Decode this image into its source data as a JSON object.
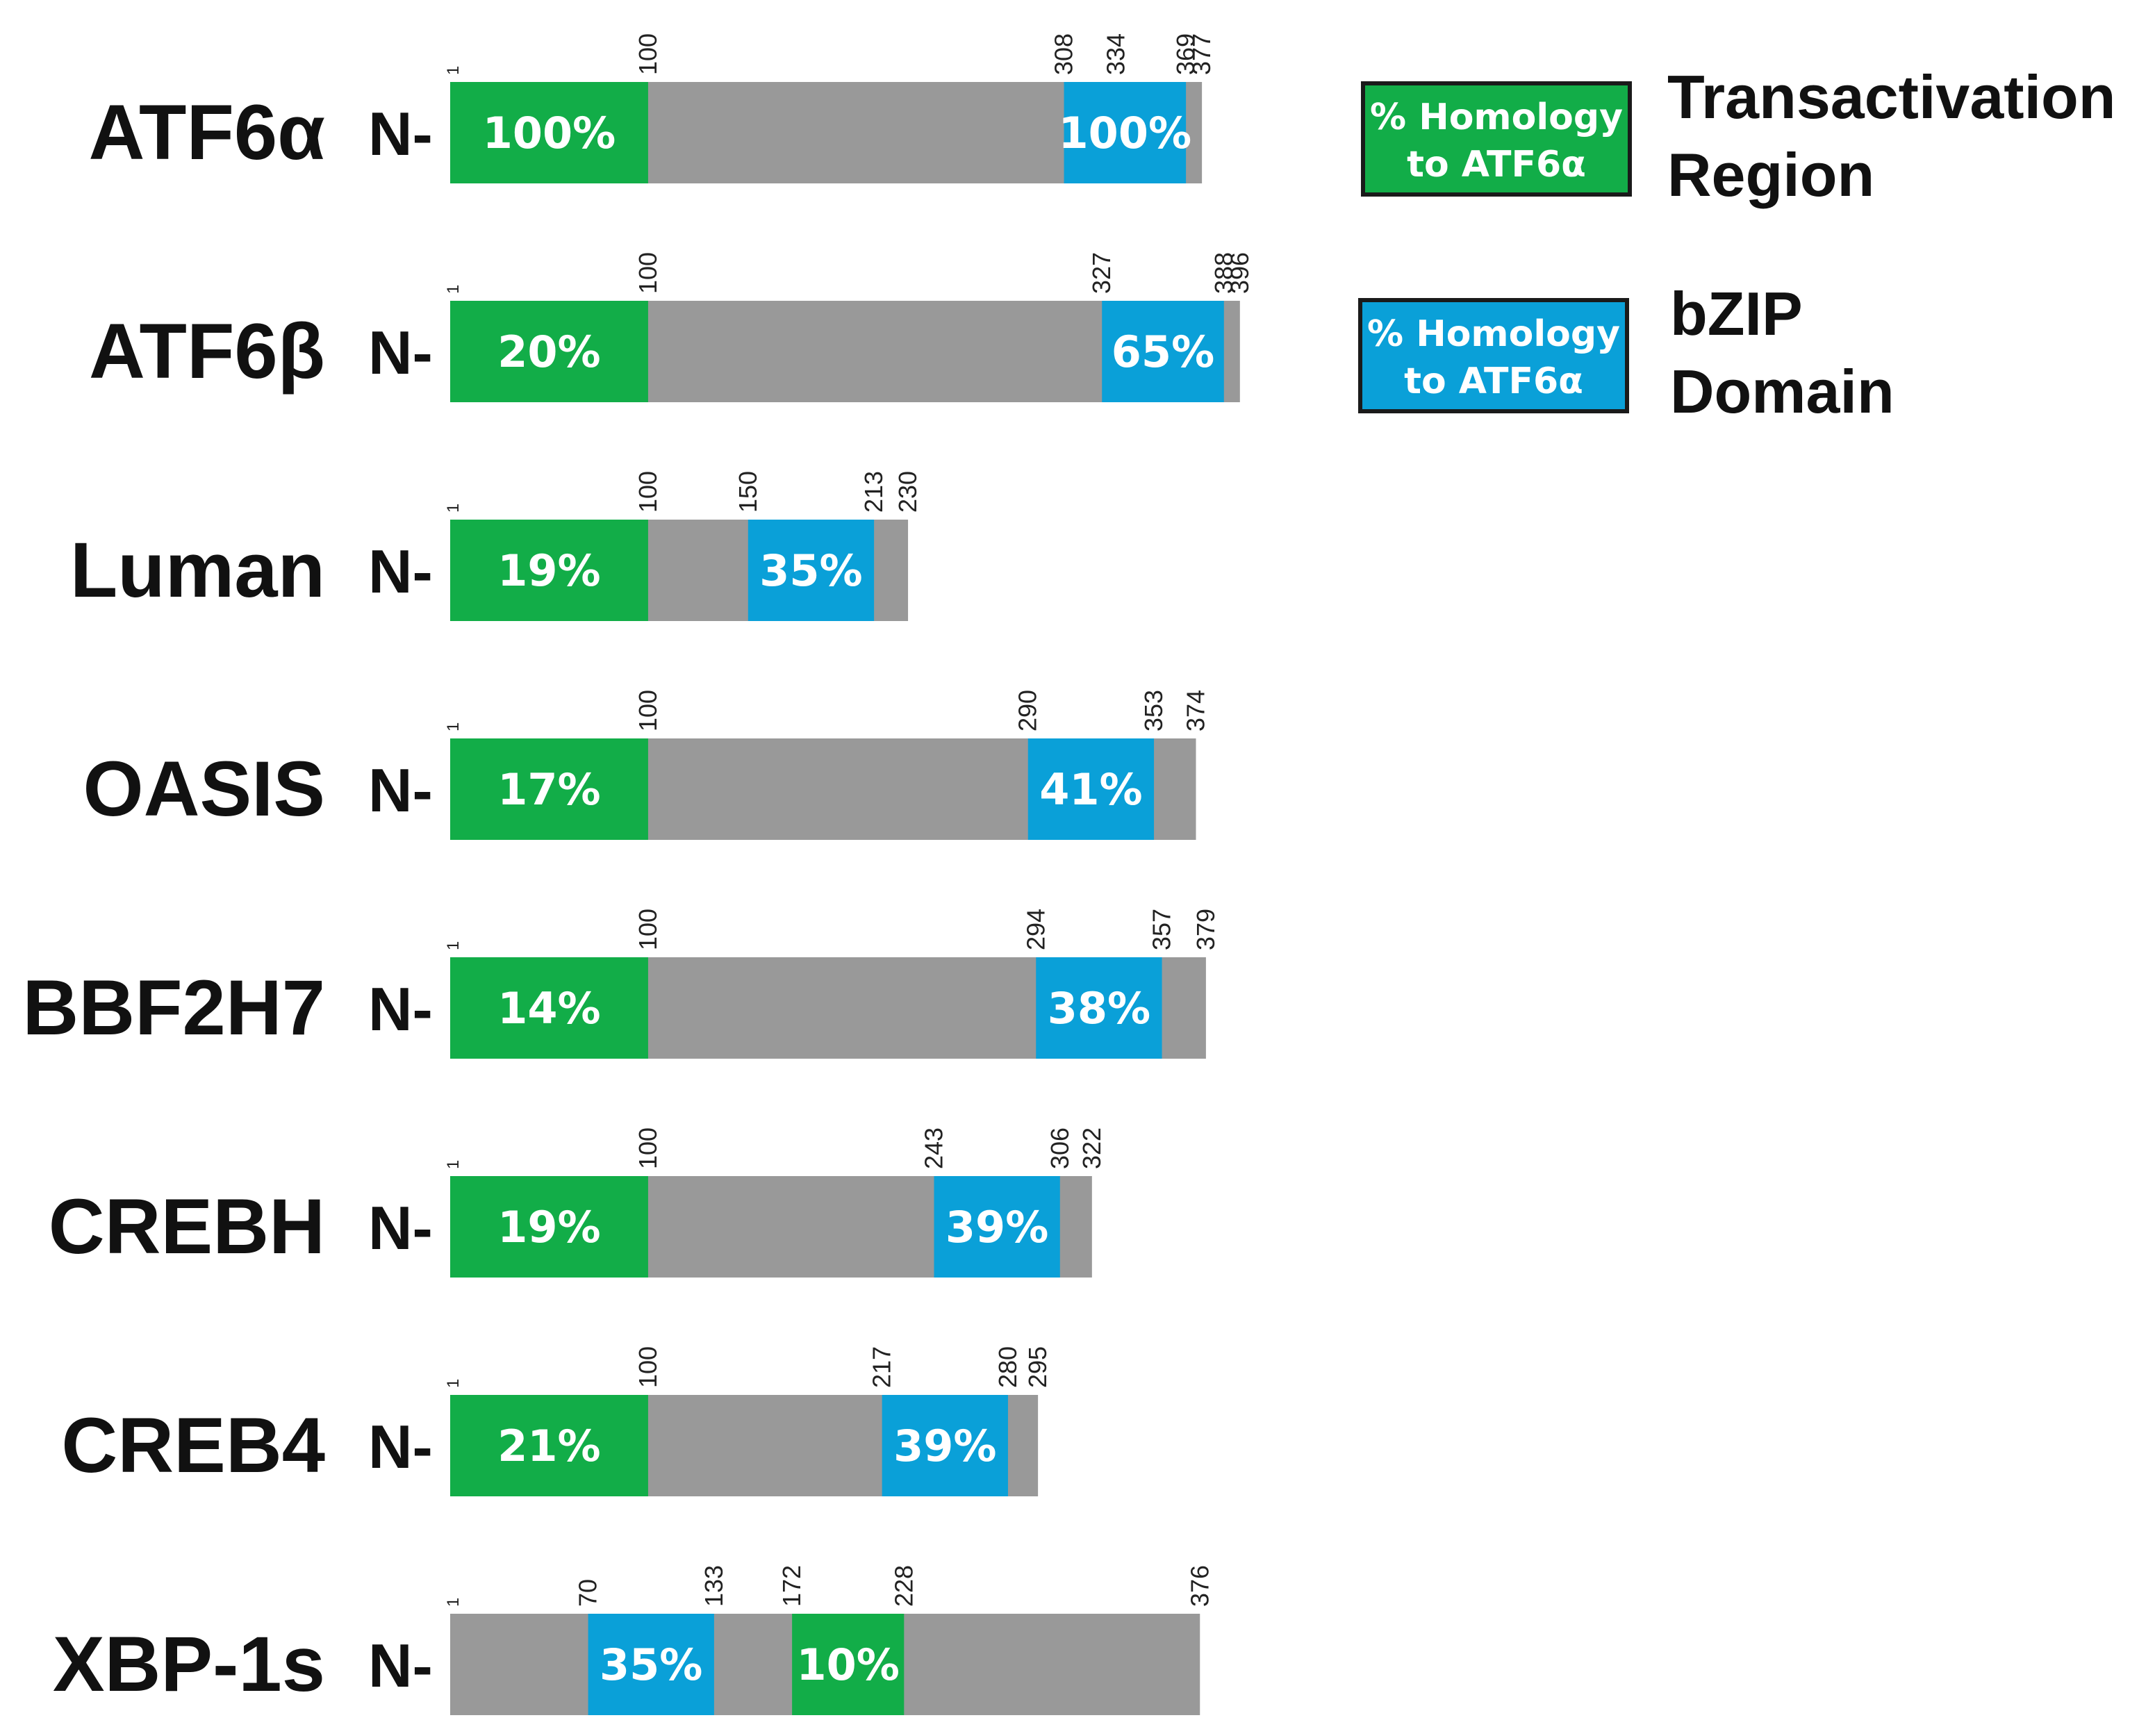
{
  "colors": {
    "backbone": "#999999",
    "transactivation": "#12ad48",
    "bzip": "#0aa0d8",
    "legend_border": "#1a1a1a",
    "text": "#111111"
  },
  "n_terminus_label": "N-",
  "legend": [
    {
      "key": "transactivation",
      "box_line1": "% Homology",
      "box_line2": "to ATF6α",
      "label_line1": "Transactivation",
      "label_line2": "Region"
    },
    {
      "key": "bzip",
      "box_line1": "% Homology",
      "box_line2": "to ATF6α",
      "label_line1": "bZIP",
      "label_line2": "Domain"
    }
  ],
  "proteins": [
    {
      "name": "ATF6α",
      "length": 377,
      "positions": [
        "1",
        "100",
        "308",
        "334",
        "369",
        "377"
      ],
      "domains": [
        {
          "type": "transactivation",
          "start": 1,
          "end": 100,
          "label": "100%"
        },
        {
          "type": "bzip",
          "start": 308,
          "end": 369,
          "label": "100%"
        }
      ]
    },
    {
      "name": "ATF6β",
      "length": 396,
      "positions": [
        "1",
        "100",
        "327",
        "388",
        "396"
      ],
      "domains": [
        {
          "type": "transactivation",
          "start": 1,
          "end": 100,
          "label": "20%"
        },
        {
          "type": "bzip",
          "start": 327,
          "end": 388,
          "label": "65%"
        }
      ]
    },
    {
      "name": "Luman",
      "length": 230,
      "positions": [
        "1",
        "100",
        "150",
        "213",
        "230"
      ],
      "domains": [
        {
          "type": "transactivation",
          "start": 1,
          "end": 100,
          "label": "19%"
        },
        {
          "type": "bzip",
          "start": 150,
          "end": 213,
          "label": "35%"
        }
      ]
    },
    {
      "name": "OASIS",
      "length": 374,
      "positions": [
        "1",
        "100",
        "290",
        "353",
        "374"
      ],
      "domains": [
        {
          "type": "transactivation",
          "start": 1,
          "end": 100,
          "label": "17%"
        },
        {
          "type": "bzip",
          "start": 290,
          "end": 353,
          "label": "41%"
        }
      ]
    },
    {
      "name": "BBF2H7",
      "length": 379,
      "positions": [
        "1",
        "100",
        "294",
        "357",
        "379"
      ],
      "domains": [
        {
          "type": "transactivation",
          "start": 1,
          "end": 100,
          "label": "14%"
        },
        {
          "type": "bzip",
          "start": 294,
          "end": 357,
          "label": "38%"
        }
      ]
    },
    {
      "name": "CREBH",
      "length": 322,
      "positions": [
        "1",
        "100",
        "243",
        "306",
        "322"
      ],
      "domains": [
        {
          "type": "transactivation",
          "start": 1,
          "end": 100,
          "label": "19%"
        },
        {
          "type": "bzip",
          "start": 243,
          "end": 306,
          "label": "39%"
        }
      ]
    },
    {
      "name": "CREB4",
      "length": 295,
      "positions": [
        "1",
        "100",
        "217",
        "280",
        "295"
      ],
      "domains": [
        {
          "type": "transactivation",
          "start": 1,
          "end": 100,
          "label": "21%"
        },
        {
          "type": "bzip",
          "start": 217,
          "end": 280,
          "label": "39%"
        }
      ]
    },
    {
      "name": "XBP-1s",
      "length": 376,
      "positions": [
        "1",
        "70",
        "133",
        "172",
        "228",
        "376"
      ],
      "domains": [
        {
          "type": "bzip",
          "start": 70,
          "end": 133,
          "label": "35%"
        },
        {
          "type": "transactivation",
          "start": 172,
          "end": 228,
          "label": "10%"
        }
      ]
    }
  ]
}
